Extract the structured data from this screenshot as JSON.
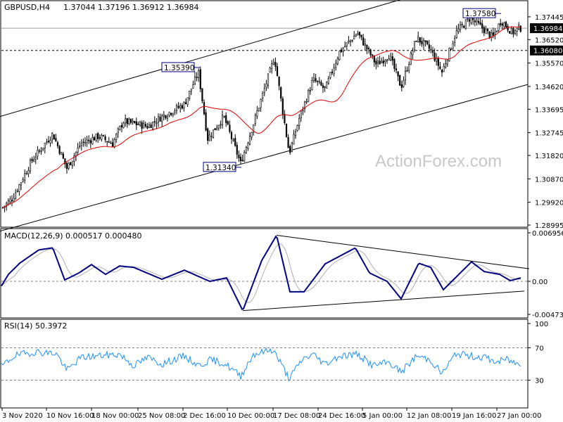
{
  "colors": {
    "background": "#ffffff",
    "candle": "#000000",
    "ma": "#e00000",
    "macd_main": "#000080",
    "macd_signal": "#b0b0b0",
    "rsi": "#1e90ff",
    "grid_line": "#808080",
    "watermark": "#c8c8c8",
    "price_tag_bg": "#000000",
    "price_tag_text": "#ffffff"
  },
  "header": {
    "symbol_tf": "GBPUSD,H4",
    "ohlc": "1.37044 1.37196 1.36912 1.36984"
  },
  "watermark": "ActionForex.com",
  "chart_data": [
    {
      "type": "candlestick",
      "panel": "price",
      "title": "GBPUSD,H4",
      "ylim": [
        1.28995,
        1.37985
      ],
      "price_scale_ticks": [
        "1.37445",
        "1.36520",
        "1.35570",
        "1.34620",
        "1.33695",
        "1.32745",
        "1.31820",
        "1.30870",
        "1.29920",
        "1.28995"
      ],
      "current_price_tag": "1.36984",
      "support_line_tag": "1.36080",
      "annotations": [
        {
          "label": "1.35390",
          "value": 1.3539
        },
        {
          "label": "1.31340",
          "value": 1.3134
        },
        {
          "label": "1.37580",
          "value": 1.3758
        }
      ],
      "channel": {
        "upper": [
          [
            0,
            1.334
          ],
          [
            612,
            1.385
          ]
        ],
        "lower": [
          [
            0,
            1.2875
          ],
          [
            750,
            1.347
          ]
        ]
      },
      "anchors": [
        [
          0,
          1.296
        ],
        [
          18,
          1.301
        ],
        [
          45,
          1.316
        ],
        [
          75,
          1.327
        ],
        [
          95,
          1.313
        ],
        [
          115,
          1.323
        ],
        [
          140,
          1.326
        ],
        [
          160,
          1.323
        ],
        [
          175,
          1.332
        ],
        [
          210,
          1.33
        ],
        [
          230,
          1.334
        ],
        [
          262,
          1.339
        ],
        [
          282,
          1.352
        ],
        [
          295,
          1.325
        ],
        [
          318,
          1.334
        ],
        [
          342,
          1.315
        ],
        [
          360,
          1.331
        ],
        [
          390,
          1.358
        ],
        [
          411,
          1.319
        ],
        [
          425,
          1.333
        ],
        [
          445,
          1.349
        ],
        [
          462,
          1.345
        ],
        [
          482,
          1.36
        ],
        [
          508,
          1.368
        ],
        [
          535,
          1.355
        ],
        [
          553,
          1.359
        ],
        [
          570,
          1.346
        ],
        [
          592,
          1.366
        ],
        [
          612,
          1.361
        ],
        [
          628,
          1.352
        ],
        [
          648,
          1.368
        ],
        [
          668,
          1.374
        ],
        [
          685,
          1.37
        ],
        [
          700,
          1.366
        ],
        [
          712,
          1.373
        ],
        [
          728,
          1.368
        ],
        [
          738,
          1.3698
        ]
      ],
      "ma_period_note": "moving average"
    },
    {
      "type": "line",
      "panel": "macd",
      "title": "MACD(12,26,9) 0.000517 0.000480",
      "ylim": [
        -0.004736,
        0.006956
      ],
      "scale_ticks": [
        "0.006956",
        "0.00",
        "-0.004736"
      ],
      "anchors": [
        [
          0,
          -0.001
        ],
        [
          12,
          0.001
        ],
        [
          28,
          0.0026
        ],
        [
          55,
          0.0045
        ],
        [
          75,
          0.0048
        ],
        [
          92,
          0.0002
        ],
        [
          112,
          0.0012
        ],
        [
          130,
          0.0024
        ],
        [
          150,
          0.001
        ],
        [
          170,
          0.0022
        ],
        [
          190,
          0.002
        ],
        [
          230,
          0.0003
        ],
        [
          262,
          0.0016
        ],
        [
          298,
          0.0
        ],
        [
          322,
          0.0005
        ],
        [
          345,
          -0.0042
        ],
        [
          372,
          0.003
        ],
        [
          393,
          0.0066
        ],
        [
          412,
          -0.0015
        ],
        [
          432,
          -0.0015
        ],
        [
          462,
          0.0025
        ],
        [
          505,
          0.0048
        ],
        [
          525,
          0.0012
        ],
        [
          550,
          0.0
        ],
        [
          570,
          -0.0025
        ],
        [
          595,
          0.0026
        ],
        [
          612,
          0.002
        ],
        [
          630,
          -0.0012
        ],
        [
          650,
          0.0008
        ],
        [
          670,
          0.0028
        ],
        [
          688,
          0.0014
        ],
        [
          710,
          0.001
        ],
        [
          725,
          0.0001
        ],
        [
          740,
          0.0005
        ]
      ],
      "triangle": {
        "upper": [
          [
            393,
            0.0066
          ],
          [
            752,
            0.0018
          ]
        ],
        "lower": [
          [
            345,
            -0.0042
          ],
          [
            745,
            -0.0014
          ]
        ]
      },
      "signal_lag": 9
    },
    {
      "type": "line",
      "panel": "rsi",
      "title": "RSI(14) 50.3972",
      "ylim": [
        0,
        100
      ],
      "scale_ticks": [
        "100",
        "70",
        "30"
      ],
      "levels": [
        70,
        30
      ],
      "anchors": [
        [
          0,
          45
        ],
        [
          20,
          60
        ],
        [
          50,
          65
        ],
        [
          80,
          63
        ],
        [
          95,
          42
        ],
        [
          115,
          58
        ],
        [
          140,
          60
        ],
        [
          170,
          62
        ],
        [
          190,
          48
        ],
        [
          210,
          58
        ],
        [
          230,
          50
        ],
        [
          262,
          60
        ],
        [
          282,
          48
        ],
        [
          300,
          55
        ],
        [
          320,
          50
        ],
        [
          342,
          35
        ],
        [
          360,
          62
        ],
        [
          388,
          68
        ],
        [
          411,
          32
        ],
        [
          430,
          56
        ],
        [
          445,
          62
        ],
        [
          462,
          50
        ],
        [
          482,
          60
        ],
        [
          508,
          62
        ],
        [
          530,
          48
        ],
        [
          553,
          52
        ],
        [
          570,
          40
        ],
        [
          592,
          60
        ],
        [
          612,
          55
        ],
        [
          628,
          38
        ],
        [
          648,
          63
        ],
        [
          668,
          60
        ],
        [
          690,
          58
        ],
        [
          705,
          52
        ],
        [
          720,
          56
        ],
        [
          735,
          50
        ],
        [
          740,
          50.4
        ]
      ]
    }
  ],
  "time_axis": {
    "labels": [
      "3 Nov 2020",
      "10 Nov 16:00",
      "18 Nov 00:00",
      "25 Nov 08:00",
      "2 Dec 16:00",
      "10 Dec 00:00",
      "17 Dec 08:00",
      "24 Dec 16:00",
      "5 Jan 00:00",
      "12 Jan 08:00",
      "19 Jan 16:00",
      "27 Jan 00:00"
    ]
  }
}
